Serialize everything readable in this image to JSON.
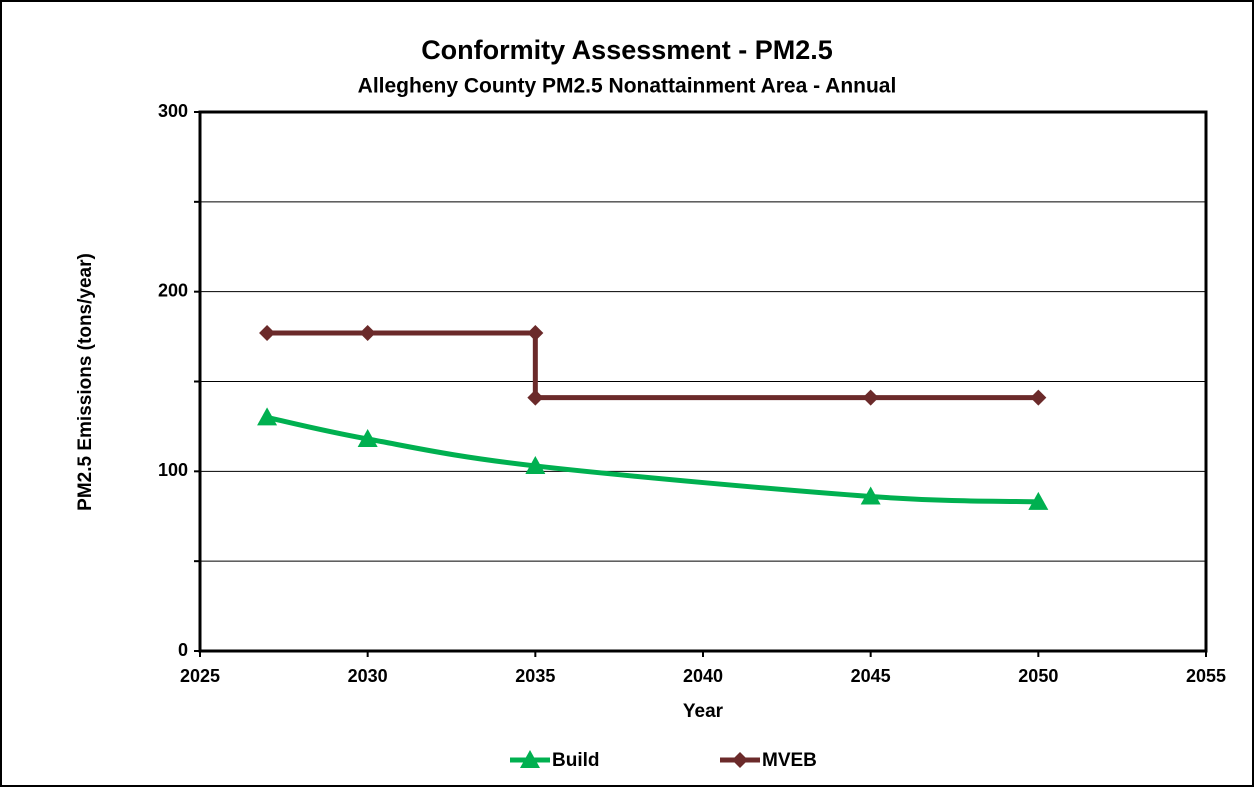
{
  "chart_data": {
    "type": "line",
    "title": "Conformity Assessment - PM2.5",
    "subtitle": "Allegheny County PM2.5 Nonattainment Area - Annual",
    "x_label": "Year",
    "y_label": "PM2.5 Emissions (tons/year)",
    "series": [
      {
        "name": "Build",
        "color": "#00b050",
        "marker": "triangle",
        "smooth": true,
        "x": [
          2027,
          2030,
          2035,
          2045,
          2050
        ],
        "values": [
          130,
          118,
          103,
          86,
          83
        ]
      },
      {
        "name": "MVEB",
        "color": "#6b2a2a",
        "marker": "diamond",
        "smooth": false,
        "x": [
          2027,
          2030,
          2035,
          2035,
          2045,
          2050
        ],
        "values": [
          177,
          177,
          177,
          141,
          141,
          141
        ]
      }
    ],
    "xlim": [
      2025,
      2055
    ],
    "xticks": [
      2025,
      2030,
      2035,
      2040,
      2045,
      2050,
      2055
    ],
    "ylim": [
      0,
      300
    ],
    "yticks": [
      0,
      100,
      200,
      300
    ],
    "y_minor_ticks": [
      50,
      150,
      250
    ],
    "grid": true,
    "legend": "bottom"
  }
}
